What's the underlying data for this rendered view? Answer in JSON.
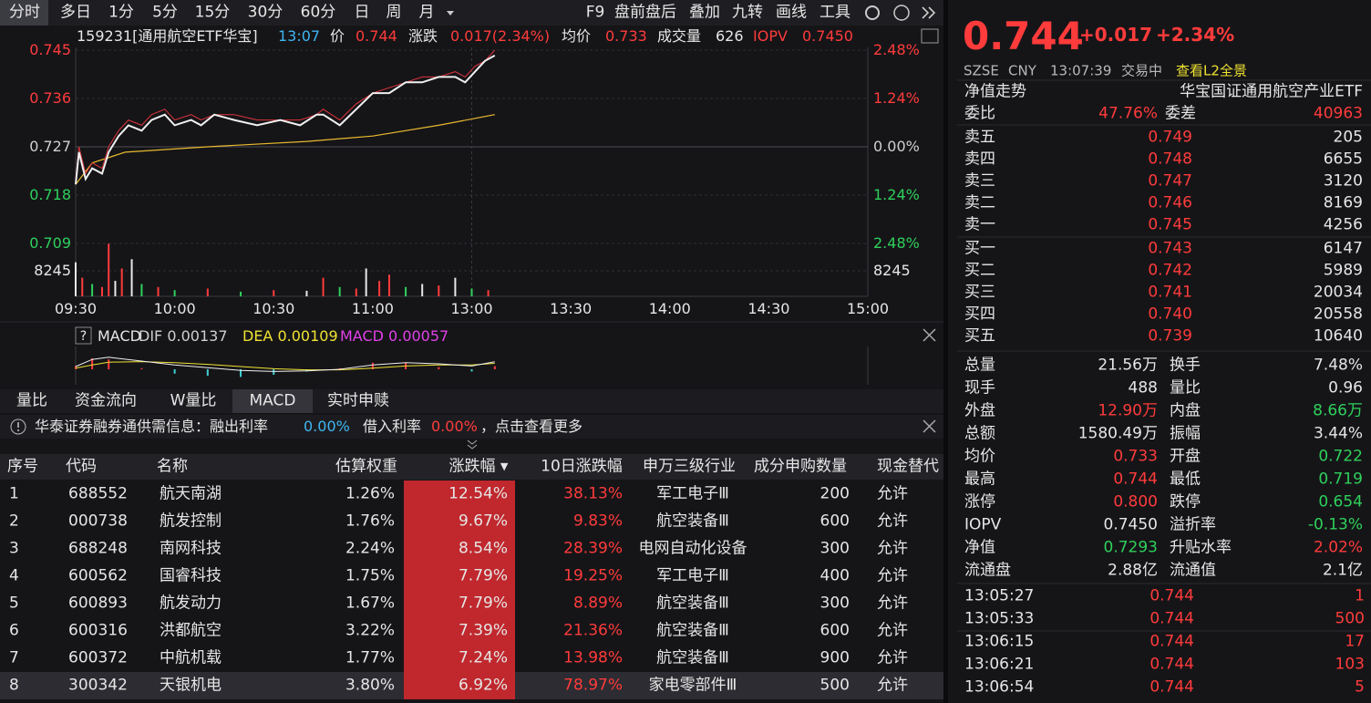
{
  "toolbar": {
    "periods": [
      "分时",
      "多日",
      "1分",
      "5分",
      "15分",
      "30分",
      "60分",
      "日",
      "周",
      "月"
    ],
    "tools": [
      "F9",
      "盘前盘后",
      "叠加",
      "九转",
      "画线",
      "工具"
    ]
  },
  "quote_line": {
    "code": "159231[通用航空ETF华宝]",
    "time": "13:07",
    "price_label": "价",
    "price": "0.744",
    "change_label": "涨跌",
    "change": "0.017(2.34%)",
    "avg_label": "均价",
    "avg": "0.733",
    "volume_label": "成交量",
    "volume": "626",
    "iopv_label": "IOPV",
    "iopv": "0.7450"
  },
  "chart": {
    "price_ticks": [
      0.745,
      0.736,
      0.727,
      0.718,
      0.709
    ],
    "pct_ticks": [
      "2.48%",
      "1.24%",
      "0.00%",
      "1.24%",
      "2.48%"
    ],
    "volume_tick": 8245,
    "time_ticks": [
      "09:30",
      "10:00",
      "10:30",
      "11:00",
      "13:00",
      "13:30",
      "14:00",
      "14:30",
      "15:00"
    ],
    "minutes": [
      0,
      1,
      3,
      5,
      8,
      10,
      13,
      16,
      20,
      23,
      27,
      30,
      35,
      38,
      42,
      48,
      55,
      62,
      68,
      73,
      75,
      80,
      85,
      90,
      95,
      100,
      105,
      110,
      115,
      118,
      121,
      124,
      127
    ],
    "price": [
      0.72,
      0.726,
      0.721,
      0.723,
      0.722,
      0.726,
      0.729,
      0.731,
      0.73,
      0.732,
      0.733,
      0.731,
      0.732,
      0.731,
      0.733,
      0.732,
      0.731,
      0.732,
      0.731,
      0.733,
      0.733,
      0.731,
      0.734,
      0.737,
      0.737,
      0.739,
      0.739,
      0.74,
      0.74,
      0.739,
      0.741,
      0.743,
      0.744
    ],
    "price_color": "#f0f0f0",
    "iopv": [
      0.721,
      0.727,
      0.722,
      0.724,
      0.723,
      0.727,
      0.73,
      0.732,
      0.731,
      0.733,
      0.734,
      0.732,
      0.733,
      0.732,
      0.733,
      0.733,
      0.732,
      0.732,
      0.732,
      0.733,
      0.734,
      0.732,
      0.735,
      0.737,
      0.738,
      0.739,
      0.74,
      0.74,
      0.741,
      0.74,
      0.742,
      0.743,
      0.745
    ],
    "iopv_color": "#e0343c",
    "avg_minutes": [
      0,
      5,
      15,
      40,
      70,
      90,
      110,
      127
    ],
    "avg": [
      0.72,
      0.724,
      0.726,
      0.727,
      0.728,
      0.729,
      0.731,
      0.733
    ],
    "avg_color": "#e8b92e",
    "vol_minutes": [
      0,
      2,
      5,
      8,
      10,
      12,
      14,
      17,
      20,
      25,
      30,
      40,
      50,
      60,
      70,
      75,
      80,
      85,
      88,
      92,
      95,
      100,
      105,
      110,
      115,
      120,
      125
    ],
    "volume": [
      11000,
      6000,
      4000,
      3000,
      17000,
      5000,
      9000,
      12000,
      4000,
      3000,
      2000,
      2500,
      1500,
      2000,
      1800,
      6000,
      3000,
      2500,
      9000,
      5000,
      7000,
      3000,
      4000,
      3500,
      6000,
      2500,
      2000
    ],
    "volume_colors": [
      "#e8e8e8",
      "#ff3b3b",
      "#2fd05b",
      "#ff3b3b",
      "#ff3b3b",
      "#e8e8e8",
      "#ff3b3b",
      "#e8e8e8",
      "#2fd05b",
      "#ff3b3b",
      "#2fd05b",
      "#ff3b3b",
      "#2fd05b",
      "#ff3b3b",
      "#e8e8e8",
      "#ff3b3b",
      "#2fd05b",
      "#ff3b3b",
      "#e8e8e8",
      "#ff3b3b",
      "#ff3b3b",
      "#2fd05b",
      "#e8e8e8",
      "#ff3b3b",
      "#e8e8e8",
      "#2fd05b",
      "#ff3b3b"
    ]
  },
  "macd": {
    "help": "?",
    "title": "MACD",
    "dif_label": "DIF 0.00137",
    "dea_label": "DEA 0.00109",
    "macd_label": "MACD 0.00057",
    "minutes": [
      0,
      5,
      10,
      20,
      30,
      40,
      50,
      60,
      70,
      80,
      90,
      100,
      110,
      120,
      127
    ],
    "dif": [
      0.0005,
      0.0018,
      0.0022,
      0.0015,
      0.0008,
      0.0003,
      -0.0002,
      -0.0004,
      -0.0003,
      0.0,
      0.0008,
      0.0012,
      0.001,
      0.0006,
      0.00137
    ],
    "dea": [
      0.0002,
      0.0008,
      0.0013,
      0.0014,
      0.0012,
      0.0009,
      0.0005,
      0.0001,
      -0.0001,
      -0.0001,
      0.0002,
      0.0006,
      0.0008,
      0.0008,
      0.00109
    ],
    "hist": [
      0.0006,
      0.002,
      0.0018,
      0.0002,
      -0.0008,
      -0.0012,
      -0.0014,
      -0.001,
      -0.0004,
      0.0002,
      0.0012,
      0.0012,
      0.0004,
      -0.0004,
      0.00057
    ]
  },
  "tabs": [
    "量比",
    "资金流向",
    "W量比",
    "MACD",
    "实时申赎"
  ],
  "notice": {
    "text": "华泰证券融券通供需信息：融出利率",
    "lend_rate": "0.00%",
    "borrow_label": "借入利率",
    "borrow_rate": "0.00%",
    "more": "，点击查看更多"
  },
  "table": {
    "header": [
      "序号",
      "代码",
      "名称",
      "估算权重",
      "涨跌幅 ▾",
      "10日涨跌幅",
      "申万三级行业",
      "成分申购数量",
      "现金替代"
    ],
    "rows": [
      [
        "1",
        "688552",
        "航天南湖",
        "1.26%",
        "12.54%",
        "38.13%",
        "军工电子Ⅲ",
        "200",
        "允许"
      ],
      [
        "2",
        "000738",
        "航发控制",
        "1.76%",
        "9.67%",
        "9.83%",
        "航空装备Ⅲ",
        "600",
        "允许"
      ],
      [
        "3",
        "688248",
        "南网科技",
        "2.24%",
        "8.54%",
        "28.39%",
        "电网自动化设备",
        "300",
        "允许"
      ],
      [
        "4",
        "600562",
        "国睿科技",
        "1.75%",
        "7.79%",
        "19.25%",
        "军工电子Ⅲ",
        "400",
        "允许"
      ],
      [
        "5",
        "600893",
        "航发动力",
        "1.67%",
        "7.79%",
        "8.89%",
        "航空装备Ⅲ",
        "300",
        "允许"
      ],
      [
        "6",
        "600316",
        "洪都航空",
        "3.22%",
        "7.39%",
        "21.36%",
        "航空装备Ⅲ",
        "600",
        "允许"
      ],
      [
        "7",
        "600372",
        "中航机载",
        "1.77%",
        "7.24%",
        "13.98%",
        "航空装备Ⅲ",
        "900",
        "允许"
      ],
      [
        "8",
        "300342",
        "天银机电",
        "3.80%",
        "6.92%",
        "78.97%",
        "家电零部件Ⅲ",
        "500",
        "允许"
      ]
    ]
  },
  "quote": {
    "price": "0.744",
    "change": "+0.017",
    "pct": "+2.34%",
    "exchange": "SZSE",
    "currency": "CNY",
    "time": "13:07:39",
    "status": "交易中",
    "l2_link": "查看L2全景"
  },
  "nav_title": "净值走势",
  "fund_name": "华宝国证通用航空产业ETF",
  "order_ratio": {
    "label": "委比",
    "value": "47.76%",
    "diff_label": "委差",
    "diff": "40963"
  },
  "asks": [
    [
      "卖五",
      "0.749",
      "205"
    ],
    [
      "卖四",
      "0.748",
      "6655"
    ],
    [
      "卖三",
      "0.747",
      "3120"
    ],
    [
      "卖二",
      "0.746",
      "8169"
    ],
    [
      "卖一",
      "0.745",
      "4256"
    ]
  ],
  "bids": [
    [
      "买一",
      "0.743",
      "6147"
    ],
    [
      "买二",
      "0.742",
      "5989"
    ],
    [
      "买三",
      "0.741",
      "20034"
    ],
    [
      "买四",
      "0.740",
      "20558"
    ],
    [
      "买五",
      "0.739",
      "10640"
    ]
  ],
  "stats": [
    {
      "l1": "总量",
      "v1": "21.56万",
      "c1": "#e6e6e6",
      "l2": "换手",
      "v2": "7.48%",
      "c2": "#e6e6e6"
    },
    {
      "l1": "现手",
      "v1": "488",
      "c1": "#e6e6e6",
      "l2": "量比",
      "v2": "0.96",
      "c2": "#e6e6e6"
    },
    {
      "l1": "外盘",
      "v1": "12.90万",
      "c1": "#ff3b3b",
      "l2": "内盘",
      "v2": "8.66万",
      "c2": "#2fd05b"
    },
    {
      "l1": "总额",
      "v1": "1580.49万",
      "c1": "#e6e6e6",
      "l2": "振幅",
      "v2": "3.44%",
      "c2": "#e6e6e6"
    },
    {
      "l1": "均价",
      "v1": "0.733",
      "c1": "#ff3b3b",
      "l2": "开盘",
      "v2": "0.722",
      "c2": "#2fd05b"
    },
    {
      "l1": "最高",
      "v1": "0.744",
      "c1": "#ff3b3b",
      "l2": "最低",
      "v2": "0.719",
      "c2": "#2fd05b"
    },
    {
      "l1": "涨停",
      "v1": "0.800",
      "c1": "#ff3b3b",
      "l2": "跌停",
      "v2": "0.654",
      "c2": "#2fd05b"
    },
    {
      "l1": "IOPV",
      "v1": "0.7450",
      "c1": "#e6e6e6",
      "l2": "溢折率",
      "v2": "-0.13%",
      "c2": "#2fd05b"
    },
    {
      "l1": "净值",
      "v1": "0.7293",
      "c1": "#2fd05b",
      "l2": "升贴水率",
      "v2": "2.02%",
      "c2": "#ff3b3b"
    },
    {
      "l1": "流通盘",
      "v1": "2.88亿",
      "c1": "#e6e6e6",
      "l2": "流通值",
      "v2": "2.1亿",
      "c2": "#e6e6e6"
    }
  ],
  "trades": [
    [
      "13:05:27",
      "0.744",
      "1"
    ],
    [
      "13:05:33",
      "0.744",
      "500"
    ],
    [
      "13:06:15",
      "0.744",
      "17"
    ],
    [
      "13:06:21",
      "0.744",
      "103"
    ],
    [
      "13:06:54",
      "0.744",
      "5"
    ]
  ]
}
